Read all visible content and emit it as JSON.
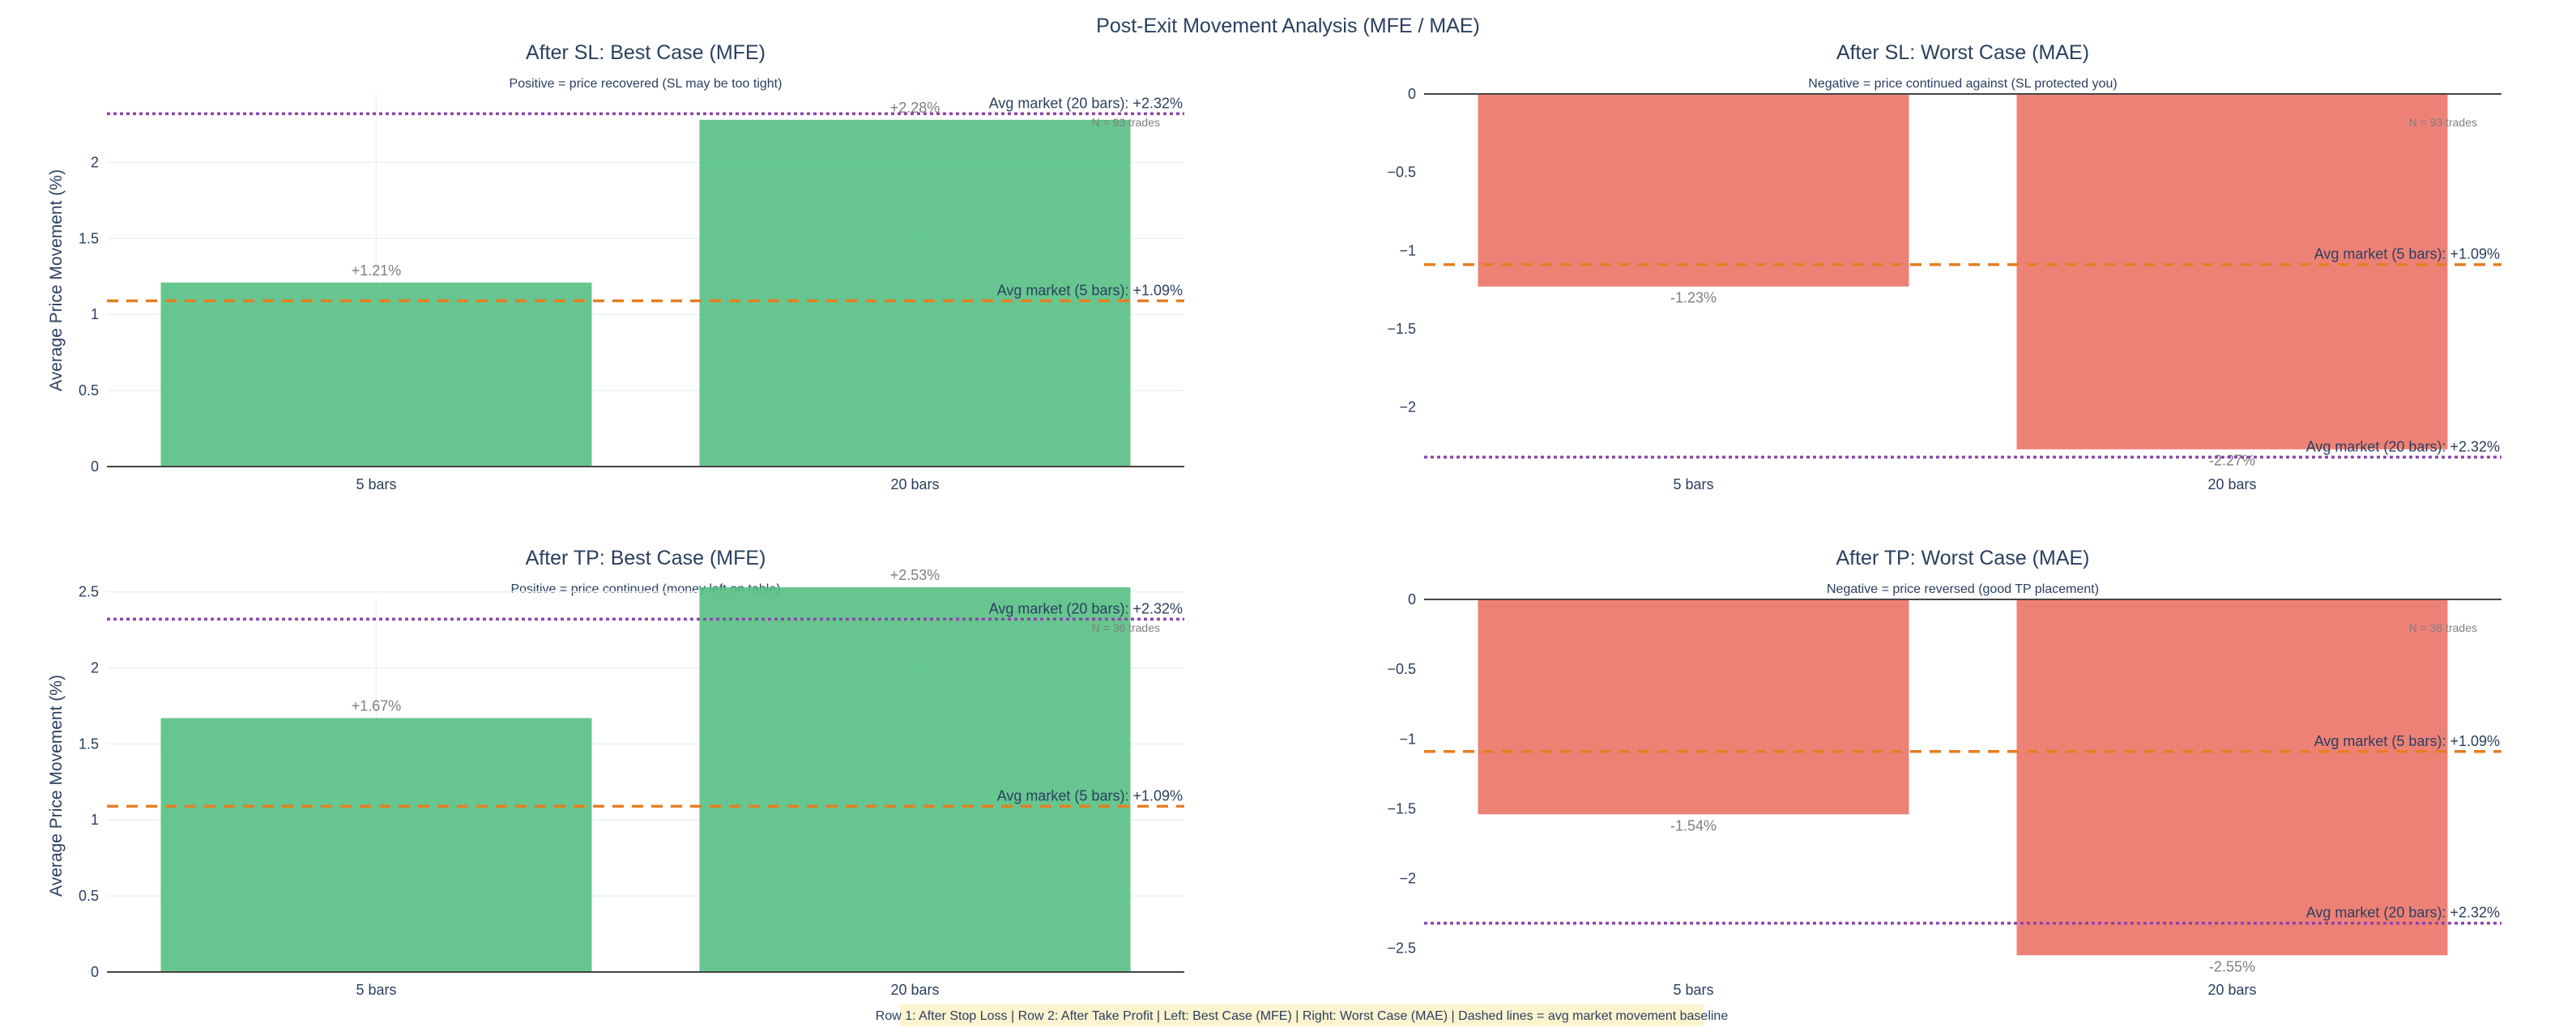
{
  "title": "Post-Exit Movement Analysis (MFE / MAE)",
  "footnote": "Row 1: After Stop Loss | Row 2: After Take Profit | Left: Best Case (MFE) | Right: Worst Case (MAE) | Dashed lines = avg market movement baseline",
  "colors": {
    "mfe_bar": "#52be80",
    "mae_bar": "#ec7063",
    "ref5": "#e67e22",
    "ref20": "#8e44ad",
    "footnote_bg": "#fcf3cf"
  },
  "chart_data": [
    {
      "type": "bar",
      "title": "After SL: Best Case (MFE)",
      "subtitle": "Positive = price recovered (SL may be too tight)",
      "ylabel": "Average Price Movement (%)",
      "categories": [
        "5 bars",
        "20 bars"
      ],
      "values": [
        1.21,
        2.28
      ],
      "data_labels": [
        "+1.21%",
        "+2.28%"
      ],
      "count_label": "N = 93 trades",
      "ylim": [
        0,
        2.45
      ],
      "yticks": [
        0,
        0.5,
        1,
        1.5,
        2
      ],
      "ytick_labels": [
        "0",
        "0.5",
        "1",
        "1.5",
        "2"
      ],
      "ref_lines": [
        {
          "value": 1.09,
          "label": "Avg market (5 bars): +1.09%",
          "style": "dashed"
        },
        {
          "value": 2.32,
          "label": "Avg market (20 bars): +2.32%",
          "style": "dotted"
        }
      ],
      "grid": true
    },
    {
      "type": "bar",
      "title": "After SL: Worst Case (MAE)",
      "subtitle": "Negative = price continued against (SL protected you)",
      "ylabel": "",
      "categories": [
        "5 bars",
        "20 bars"
      ],
      "values": [
        -1.23,
        -2.27
      ],
      "data_labels": [
        "-1.23%",
        "-2.27%"
      ],
      "count_label": "N = 93 trades",
      "ylim": [
        -2.38,
        0
      ],
      "yticks": [
        0,
        -0.5,
        -1,
        -1.5,
        -2
      ],
      "ytick_labels": [
        "0",
        "−0.5",
        "−1",
        "−1.5",
        "−2"
      ],
      "ref_lines": [
        {
          "value": -1.09,
          "label": "Avg market (5 bars): +1.09%",
          "style": "dashed"
        },
        {
          "value": -2.32,
          "label": "Avg market (20 bars): +2.32%",
          "style": "dotted"
        }
      ],
      "grid": false
    },
    {
      "type": "bar",
      "title": "After TP: Best Case (MFE)",
      "subtitle": "Positive = price continued (money left on table)",
      "ylabel": "Average Price Movement (%)",
      "categories": [
        "5 bars",
        "20 bars"
      ],
      "values": [
        1.67,
        2.53
      ],
      "data_labels": [
        "+1.67%",
        "+2.53%"
      ],
      "count_label": "N = 36 trades",
      "ylim": [
        0,
        2.45
      ],
      "yticks": [
        0,
        0.5,
        1,
        1.5,
        2,
        2.5
      ],
      "ytick_labels": [
        "0",
        "0.5",
        "1",
        "1.5",
        "2",
        "2.5"
      ],
      "ref_lines": [
        {
          "value": 1.09,
          "label": "Avg market (5 bars): +1.09%",
          "style": "dashed"
        },
        {
          "value": 2.32,
          "label": "Avg market (20 bars): +2.32%",
          "style": "dotted"
        }
      ],
      "grid": true
    },
    {
      "type": "bar",
      "title": "After TP: Worst Case (MAE)",
      "subtitle": "Negative = price reversed (good TP placement)",
      "ylabel": "",
      "categories": [
        "5 bars",
        "20 bars"
      ],
      "values": [
        -1.54,
        -2.55
      ],
      "data_labels": [
        "-1.54%",
        "-2.55%"
      ],
      "count_label": "N = 36 trades",
      "ylim": [
        -2.67,
        0
      ],
      "yticks": [
        0,
        -0.5,
        -1,
        -1.5,
        -2,
        -2.5
      ],
      "ytick_labels": [
        "0",
        "−0.5",
        "−1",
        "−1.5",
        "−2",
        "−2.5"
      ],
      "ref_lines": [
        {
          "value": -1.09,
          "label": "Avg market (5 bars): +1.09%",
          "style": "dashed"
        },
        {
          "value": -2.32,
          "label": "Avg market (20 bars): +2.32%",
          "style": "dotted"
        }
      ],
      "grid": false
    }
  ]
}
